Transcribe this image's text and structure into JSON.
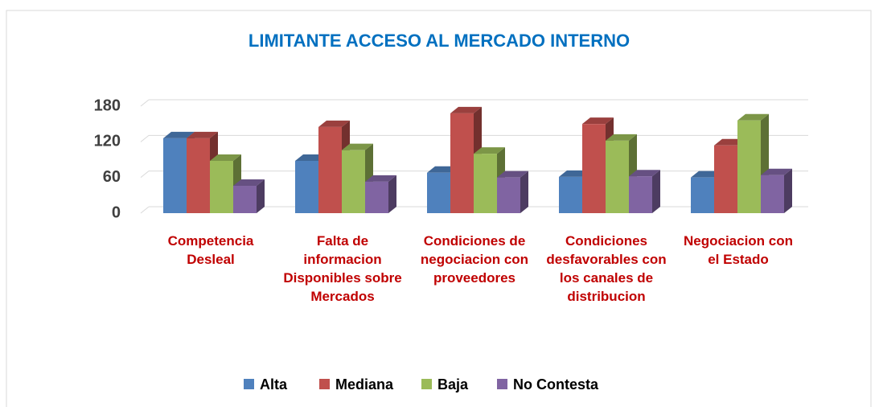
{
  "chart_data": {
    "type": "bar3d",
    "title": "LIMITANTE ACCESO AL MERCADO INTERNO",
    "categories": [
      "Competencia Desleal",
      "Falta de informacion Disponibles sobre Mercados",
      "Condiciones de negociacion con proveedores",
      "Condiciones desfavorables con los canales de distribucion",
      "Negociacion con el Estado"
    ],
    "series": [
      {
        "name": "Alta",
        "color": "#4f81bd",
        "values": [
          126,
          88,
          68,
          61,
          60
        ]
      },
      {
        "name": "Mediana",
        "color": "#c0504d",
        "values": [
          126,
          145,
          168,
          150,
          114
        ]
      },
      {
        "name": "Baja",
        "color": "#9bbb59",
        "values": [
          88,
          106,
          100,
          122,
          156
        ]
      },
      {
        "name": "No Contesta",
        "color": "#8064a2",
        "values": [
          46,
          53,
          60,
          62,
          64
        ]
      }
    ],
    "ylim": [
      0,
      180
    ],
    "yticks": [
      0,
      60,
      120,
      180
    ],
    "grid": true,
    "legend": "bottom"
  }
}
